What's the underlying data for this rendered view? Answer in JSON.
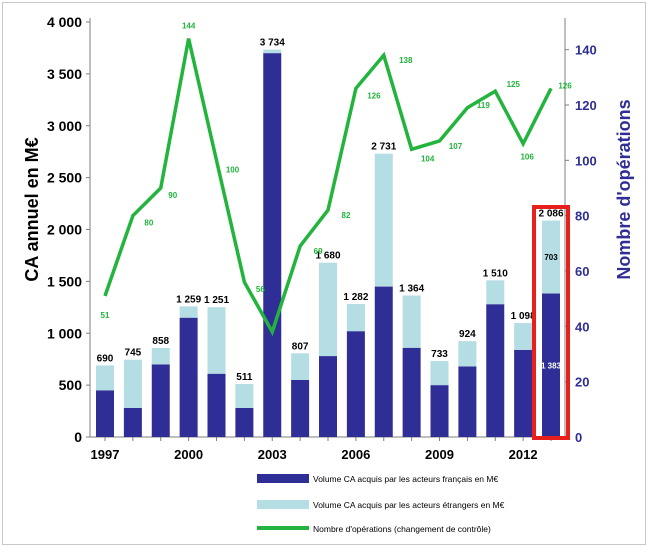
{
  "chart_data": {
    "type": "bar",
    "stacked": true,
    "years": [
      1997,
      1998,
      1999,
      2000,
      2001,
      2002,
      2003,
      2004,
      2005,
      2006,
      2007,
      2008,
      2009,
      2010,
      2011,
      2012,
      2013
    ],
    "x_tick_labels": [
      "1997",
      "2000",
      "2003",
      "2006",
      "2009",
      "2012"
    ],
    "x_tick_years": [
      1997,
      2000,
      2003,
      2006,
      2009,
      2012
    ],
    "ylabel": "CA annuel en M€",
    "y2label": "Nombre d'opérations",
    "ylim": [
      0,
      4000
    ],
    "y_ticks": [
      0,
      500,
      1000,
      1500,
      2000,
      2500,
      3000,
      3500,
      4000
    ],
    "y_tick_labels": [
      "0",
      "500",
      "1 000",
      "1 500",
      "2 000",
      "2 500",
      "3 000",
      "3 500",
      "4 000"
    ],
    "y2lim": [
      0,
      150
    ],
    "y2_ticks": [
      0,
      20,
      40,
      60,
      80,
      100,
      120,
      140
    ],
    "y2_tick_labels": [
      "0",
      "20",
      "40",
      "60",
      "80",
      "100",
      "120",
      "140"
    ],
    "series": [
      {
        "name": "Volume CA acquis par les acteurs français en M€",
        "kind": "bar",
        "color": "#2e2e96",
        "values": [
          450,
          280,
          700,
          1150,
          610,
          280,
          3700,
          550,
          780,
          1020,
          1450,
          860,
          500,
          680,
          1280,
          840,
          1383
        ]
      },
      {
        "name": "Volume CA acquis par les acteurs étrangers en M€",
        "kind": "bar",
        "color": "#b4dde4",
        "values": [
          240,
          465,
          158,
          109,
          641,
          231,
          34,
          257,
          900,
          262,
          1281,
          504,
          233,
          244,
          230,
          258,
          703
        ]
      },
      {
        "name": "Nombre d'opérations (changement de contrôle)",
        "kind": "line",
        "color": "#22b43c",
        "values": [
          51,
          80,
          90,
          144,
          100,
          56,
          38,
          69,
          82,
          126,
          138,
          104,
          107,
          119,
          125,
          106,
          126
        ]
      }
    ],
    "total_labels": [
      "690",
      "745",
      "858",
      "1 259",
      "1 251",
      "511",
      "3 734",
      "807",
      "1 680",
      "1 282",
      "2 731",
      "1 364",
      "733",
      "924",
      "1 510",
      "1 098",
      "2 086"
    ],
    "inner_labels": [
      {
        "year": 2013,
        "series": 0,
        "text": "1 383"
      },
      {
        "year": 2013,
        "series": 1,
        "text": "703"
      }
    ],
    "line_labels": [
      {
        "year": 1997,
        "text": "51"
      },
      {
        "year": 1998,
        "text": "80"
      },
      {
        "year": 1999,
        "text": "90"
      },
      {
        "year": 2000,
        "text": "144"
      },
      {
        "year": 2001,
        "text": "100"
      },
      {
        "year": 2002,
        "text": "56"
      },
      {
        "year": 2004,
        "text": "69"
      },
      {
        "year": 2005,
        "text": "82"
      },
      {
        "year": 2006,
        "text": "126"
      },
      {
        "year": 2007,
        "text": "138"
      },
      {
        "year": 2008,
        "text": "104"
      },
      {
        "year": 2009,
        "text": "107"
      },
      {
        "year": 2010,
        "text": "119"
      },
      {
        "year": 2011,
        "text": "125"
      },
      {
        "year": 2012,
        "text": "106"
      },
      {
        "year": 2013,
        "text": "126"
      }
    ],
    "highlight": {
      "year": 2013,
      "color": "#e8201c"
    },
    "colors": {
      "left_axis_text": "#000000",
      "right_axis_text": "#2e2e96",
      "line_label": "#22b43c"
    }
  }
}
